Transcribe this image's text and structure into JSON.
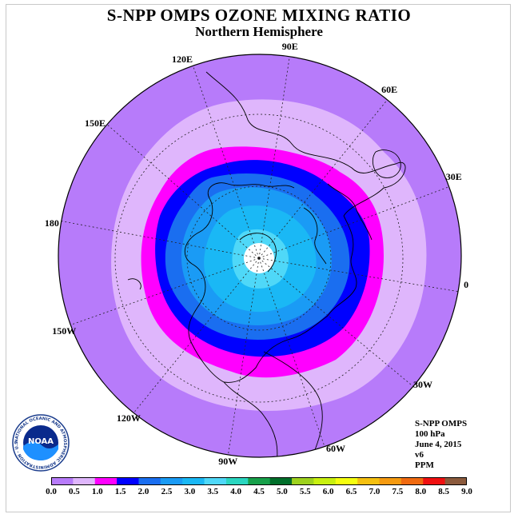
{
  "header": {
    "title": "S-NPP OMPS OZONE MIXING RATIO",
    "subtitle": "Northern Hemisphere"
  },
  "longitude_labels": [
    {
      "text": "90E",
      "deg": 90
    },
    {
      "text": "60E",
      "deg": 60
    },
    {
      "text": "30E",
      "deg": 30
    },
    {
      "text": "0",
      "deg": 0
    },
    {
      "text": "30W",
      "deg": -30
    },
    {
      "text": "60W",
      "deg": -60
    },
    {
      "text": "90W",
      "deg": -90
    },
    {
      "text": "120W",
      "deg": -120
    },
    {
      "text": "150W",
      "deg": -150
    },
    {
      "text": "180",
      "deg": 180
    },
    {
      "text": "150E",
      "deg": 150
    },
    {
      "text": "120E",
      "deg": 120
    }
  ],
  "info": {
    "instrument": "S-NPP OMPS",
    "level": "100 hPa",
    "date": "June 4, 2015",
    "version": "v6",
    "units": "PPM"
  },
  "logo": {
    "text": "NOAA",
    "ring_text": "NATIONAL OCEANIC AND ATMOSPHERIC ADMINISTRATION · U.S. DEPARTMENT OF COMMERCE"
  },
  "colorbar": {
    "ticks": [
      "0.0",
      "0.5",
      "1.0",
      "1.5",
      "2.0",
      "2.5",
      "3.0",
      "3.5",
      "4.0",
      "4.5",
      "5.0",
      "5.5",
      "6.0",
      "6.5",
      "7.0",
      "7.5",
      "8.0",
      "8.5",
      "9.0"
    ],
    "colors": [
      "#b77bfa",
      "#dfb6fc",
      "#ff00ff",
      "#0000ff",
      "#1a6ef0",
      "#1a9bf5",
      "#1ab8f5",
      "#4fd8f8",
      "#2ad6c0",
      "#17a04a",
      "#006e2a",
      "#9ed21e",
      "#c8f010",
      "#f5ff10",
      "#f5c010",
      "#f59a10",
      "#f06a10",
      "#f01010",
      "#8b5a3c"
    ]
  },
  "map_data": {
    "projection": "north-polar-stereographic",
    "contour_levels_ppm": [
      0.5,
      1.0,
      1.5,
      2.0,
      2.5,
      3.0,
      3.5
    ],
    "missing_data_region": "polar cap (white)"
  }
}
